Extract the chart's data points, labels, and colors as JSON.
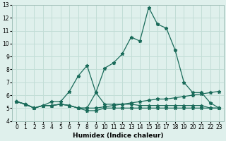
{
  "x": [
    0,
    1,
    2,
    3,
    4,
    5,
    6,
    7,
    8,
    9,
    10,
    11,
    12,
    13,
    14,
    15,
    16,
    17,
    18,
    19,
    20,
    21,
    22,
    23
  ],
  "y_peak": [
    5.5,
    5.3,
    5.0,
    5.2,
    5.2,
    5.3,
    5.2,
    5.0,
    5.0,
    5.0,
    5.1,
    5.2,
    5.3,
    5.4,
    5.5,
    5.6,
    5.7,
    5.7,
    5.8,
    5.9,
    6.0,
    6.1,
    6.2,
    6.3
  ],
  "y_main": [
    5.5,
    5.3,
    5.0,
    5.2,
    5.2,
    5.3,
    5.2,
    5.0,
    5.0,
    6.2,
    8.1,
    8.5,
    9.2,
    10.5,
    10.2,
    12.8,
    11.5,
    11.2,
    9.5,
    7.0,
    6.2,
    6.2,
    5.4,
    5.0
  ],
  "y_tri": [
    5.5,
    5.3,
    5.0,
    5.2,
    5.5,
    5.5,
    6.3,
    7.5,
    8.3,
    6.2,
    5.3,
    5.3,
    5.3,
    5.3,
    5.2,
    5.2,
    5.2,
    5.2,
    5.2,
    5.2,
    5.2,
    5.2,
    5.0,
    5.0
  ],
  "y_flat": [
    5.5,
    5.3,
    5.0,
    5.2,
    5.2,
    5.3,
    5.2,
    5.0,
    4.8,
    4.8,
    5.0,
    5.0,
    5.0,
    5.0,
    5.0,
    5.0,
    5.0,
    5.0,
    5.0,
    5.0,
    5.0,
    5.0,
    5.0,
    5.0
  ],
  "bg_color": "#dff0ec",
  "grid_color": "#c2ddd6",
  "line_color": "#1a6b5a",
  "xlabel": "Humidex (Indice chaleur)",
  "ylim": [
    4,
    13
  ],
  "xlim_min": -0.5,
  "xlim_max": 23.5,
  "yticks": [
    4,
    5,
    6,
    7,
    8,
    9,
    10,
    11,
    12,
    13
  ],
  "xticks": [
    0,
    1,
    2,
    3,
    4,
    5,
    6,
    7,
    8,
    9,
    10,
    11,
    12,
    13,
    14,
    15,
    16,
    17,
    18,
    19,
    20,
    21,
    22,
    23
  ]
}
